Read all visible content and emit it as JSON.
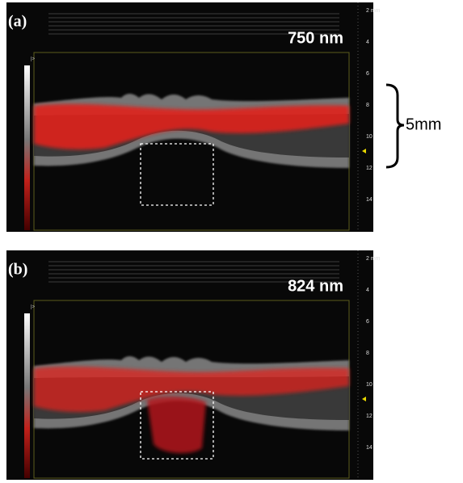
{
  "panels": [
    {
      "label": "(a)",
      "wavelength": "750 nm",
      "colorbar_label": "|>",
      "depth_ticks": [
        "2 mm",
        "4",
        "6",
        "8",
        "10",
        "12",
        "14"
      ]
    },
    {
      "label": "(b)",
      "wavelength": "824 nm",
      "colorbar_label": "|>",
      "depth_ticks": [
        "2 mm",
        "4",
        "6",
        "8",
        "10",
        "12",
        "14"
      ]
    }
  ],
  "scale_bar": "5mm"
}
